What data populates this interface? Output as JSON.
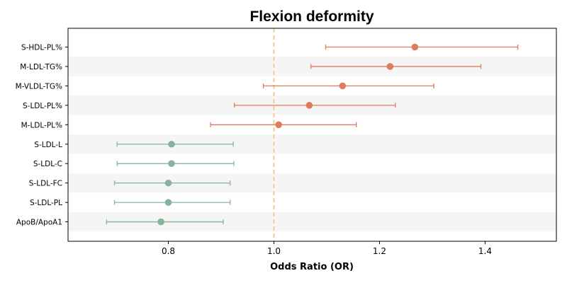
{
  "chart_data": {
    "type": "forest",
    "title": "Flexion deformity",
    "xlabel": "Odds Ratio (OR)",
    "ylabel": "",
    "xlim": [
      0.61,
      1.535
    ],
    "xticks": [
      "0.8",
      "1.0",
      "1.2",
      "1.4"
    ],
    "reference_line": 1.0,
    "reference_color": "#f5c27a",
    "grid": false,
    "alternating_row_bands": true,
    "band_color": "#f5f5f5",
    "colors": {
      "positive": "#e07b5c",
      "negative": "#86b49b"
    },
    "rows": [
      {
        "label": "S-HDL-PL%",
        "or": 1.267,
        "lower": 1.098,
        "upper": 1.462,
        "group": "positive"
      },
      {
        "label": "M-LDL-TG%",
        "or": 1.22,
        "lower": 1.07,
        "upper": 1.392,
        "group": "positive"
      },
      {
        "label": "M-VLDL-TG%",
        "or": 1.13,
        "lower": 0.98,
        "upper": 1.303,
        "group": "positive"
      },
      {
        "label": "S-LDL-PL%",
        "or": 1.067,
        "lower": 0.925,
        "upper": 1.23,
        "group": "positive"
      },
      {
        "label": "M-LDL-PL%",
        "or": 1.009,
        "lower": 0.88,
        "upper": 1.156,
        "group": "positive"
      },
      {
        "label": "S-LDL-L",
        "or": 0.806,
        "lower": 0.703,
        "upper": 0.923,
        "group": "negative"
      },
      {
        "label": "S-LDL-C",
        "or": 0.806,
        "lower": 0.703,
        "upper": 0.924,
        "group": "negative"
      },
      {
        "label": "S-LDL-FC",
        "or": 0.8,
        "lower": 0.698,
        "upper": 0.917,
        "group": "negative"
      },
      {
        "label": "S-LDL-PL",
        "or": 0.8,
        "lower": 0.698,
        "upper": 0.917,
        "group": "negative"
      },
      {
        "label": "ApoB/ApoA1",
        "or": 0.786,
        "lower": 0.683,
        "upper": 0.904,
        "group": "negative"
      }
    ]
  }
}
